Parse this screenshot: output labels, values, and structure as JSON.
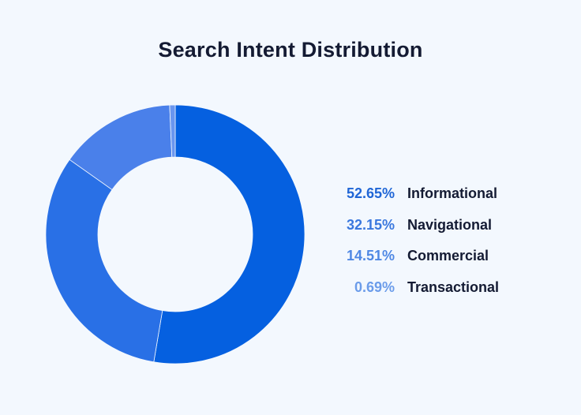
{
  "title": "Search Intent Distribution",
  "legend": [
    {
      "pct": "52.65%",
      "label": "Informational",
      "color": "#0560e0",
      "text_color": "#2066d6"
    },
    {
      "pct": "32.15%",
      "label": "Navigational",
      "color": "#2970e6",
      "text_color": "#3a78de"
    },
    {
      "pct": "14.51%",
      "label": "Commercial",
      "color": "#4a80ea",
      "text_color": "#4f88e4"
    },
    {
      "pct": "0.69%",
      "label": "Transactional",
      "color": "#6a96ef",
      "text_color": "#6b9cea"
    }
  ],
  "chart_data": {
    "type": "pie",
    "subtype": "donut",
    "title": "Search Intent Distribution",
    "categories": [
      "Informational",
      "Navigational",
      "Commercial",
      "Transactional"
    ],
    "values": [
      52.65,
      32.15,
      14.51,
      0.69
    ],
    "unit": "%",
    "colors": [
      "#0560e0",
      "#2970e6",
      "#4a80ea",
      "#6a96ef"
    ],
    "legend_position": "right",
    "start_angle": "12 o'clock, clockwise"
  }
}
